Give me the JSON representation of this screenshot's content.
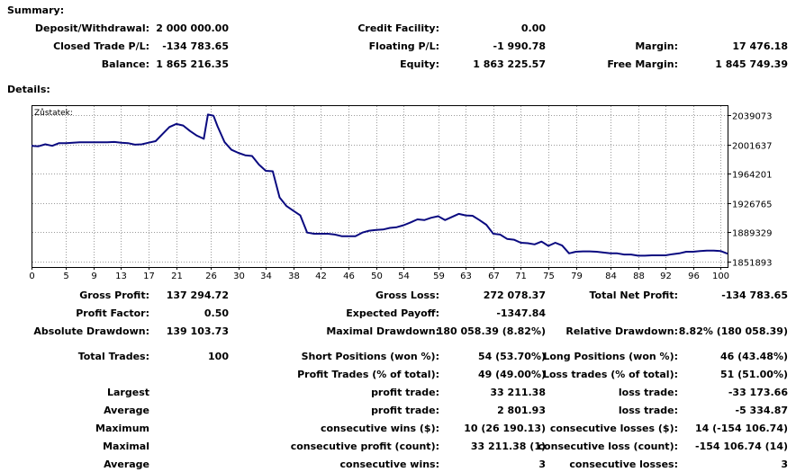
{
  "summary": {
    "heading": "Summary:",
    "deposit_label": "Deposit/Withdrawal:",
    "deposit_value": "2 000 000.00",
    "credit_label": "Credit Facility:",
    "credit_value": "0.00",
    "closed_pl_label": "Closed Trade P/L:",
    "closed_pl_value": "-134 783.65",
    "floating_pl_label": "Floating P/L:",
    "floating_pl_value": "-1 990.78",
    "margin_label": "Margin:",
    "margin_value": "17 476.18",
    "balance_label": "Balance:",
    "balance_value": "1 865 216.35",
    "equity_label": "Equity:",
    "equity_value": "1 863 225.57",
    "free_margin_label": "Free Margin:",
    "free_margin_value": "1 845 749.39"
  },
  "details": {
    "heading": "Details:"
  },
  "chart_data": {
    "type": "line",
    "title": "Zůstatek:",
    "xlabel": "",
    "ylabel": "",
    "x_ticks": [
      0,
      5,
      9,
      13,
      17,
      21,
      26,
      30,
      34,
      38,
      42,
      46,
      50,
      54,
      59,
      63,
      67,
      71,
      75,
      79,
      84,
      88,
      92,
      96,
      100
    ],
    "y_ticks": [
      1851893,
      1889329,
      1926765,
      1964201,
      2001637,
      2039073
    ],
    "xlim": [
      0,
      101
    ],
    "ylim": [
      1845000,
      2052000
    ],
    "grid": true,
    "series": [
      {
        "color": "#0a0a80",
        "x": [
          0,
          1,
          2,
          3,
          4,
          5,
          7,
          9,
          11,
          12,
          13,
          14,
          15,
          16,
          17,
          18,
          19,
          20,
          21,
          22,
          23,
          24,
          25,
          25.6,
          26.4,
          27,
          28,
          29,
          30,
          31,
          32,
          33,
          34,
          35,
          36,
          37,
          38,
          39,
          40,
          41,
          42,
          43,
          44,
          45,
          46,
          47,
          48,
          49,
          50,
          51,
          52,
          53,
          54,
          55,
          56,
          57,
          58,
          59,
          60,
          61,
          62,
          63,
          64,
          65,
          66,
          67,
          68,
          69,
          70,
          71,
          72,
          73,
          74,
          75,
          76,
          77,
          78,
          79,
          80,
          81,
          82,
          83,
          84,
          85,
          86,
          87,
          88,
          89,
          90,
          91,
          92,
          93,
          94,
          95,
          96,
          97,
          98,
          99,
          100,
          101
        ],
        "y": [
          2000000,
          1999500,
          2002000,
          2000000,
          2003500,
          2003500,
          2004500,
          2004500,
          2004500,
          2005000,
          2004000,
          2003500,
          2001500,
          2002000,
          2004000,
          2006000,
          2015000,
          2024000,
          2028000,
          2026000,
          2019000,
          2013000,
          2009000,
          2040000,
          2038500,
          2025000,
          2005000,
          1995000,
          1991000,
          1988000,
          1987000,
          1976000,
          1968000,
          1967500,
          1934000,
          1923000,
          1917000,
          1911000,
          1889000,
          1887500,
          1887500,
          1887500,
          1886500,
          1884500,
          1884500,
          1884500,
          1889000,
          1891500,
          1892500,
          1893000,
          1895000,
          1896000,
          1898500,
          1902000,
          1906000,
          1905000,
          1908000,
          1910000,
          1905000,
          1909000,
          1913000,
          1911000,
          1910500,
          1905000,
          1899000,
          1887500,
          1886500,
          1881000,
          1880000,
          1876000,
          1875500,
          1874000,
          1877500,
          1872000,
          1876000,
          1872500,
          1862500,
          1864500,
          1865000,
          1865000,
          1864500,
          1863500,
          1862500,
          1862500,
          1861000,
          1861000,
          1859500,
          1859500,
          1860000,
          1860000,
          1860000,
          1861500,
          1862500,
          1864500,
          1864500,
          1865500,
          1866000,
          1866000,
          1865500,
          1862000
        ]
      }
    ]
  },
  "stats": {
    "gross_profit_label": "Gross Profit:",
    "gross_profit_value": "137 294.72",
    "gross_loss_label": "Gross Loss:",
    "gross_loss_value": "272 078.37",
    "total_net_profit_label": "Total Net Profit:",
    "total_net_profit_value": "-134 783.65",
    "profit_factor_label": "Profit Factor:",
    "profit_factor_value": "0.50",
    "expected_payoff_label": "Expected Payoff:",
    "expected_payoff_value": "-1347.84",
    "absolute_drawdown_label": "Absolute Drawdown:",
    "absolute_drawdown_value": "139 103.73",
    "maximal_drawdown_label": "Maximal Drawdown:",
    "maximal_drawdown_value": "180 058.39 (8.82%)",
    "relative_drawdown_label": "Relative Drawdown:",
    "relative_drawdown_value": "8.82% (180 058.39)",
    "total_trades_label": "Total Trades:",
    "total_trades_value": "100",
    "short_positions_label": "Short Positions (won %):",
    "short_positions_value": "54 (53.70%)",
    "long_positions_label": "Long Positions (won %):",
    "long_positions_value": "46 (43.48%)",
    "profit_trades_label": "Profit Trades (% of total):",
    "profit_trades_value": "49 (49.00%)",
    "loss_trades_label": "Loss trades (% of total):",
    "loss_trades_value": "51 (51.00%)",
    "largest_label": "Largest",
    "largest_profit_label": "profit trade:",
    "largest_profit_value": "33 211.38",
    "largest_loss_label": "loss trade:",
    "largest_loss_value": "-33 173.66",
    "average_label": "Average",
    "average_profit_label": "profit trade:",
    "average_profit_value": "2 801.93",
    "average_loss_label": "loss trade:",
    "average_loss_value": "-5 334.87",
    "maximum_label": "Maximum",
    "max_consec_wins_label": "consecutive wins ($):",
    "max_consec_wins_value": "10 (26 190.13)",
    "max_consec_losses_label": "consecutive losses ($):",
    "max_consec_losses_value": "14 (-154 106.74)",
    "maximal_label": "Maximal",
    "maximal_consec_profit_label": "consecutive profit (count):",
    "maximal_consec_profit_value": "33 211.38 (1)",
    "maximal_consec_loss_label": "consecutive loss (count):",
    "maximal_consec_loss_value": "-154 106.74 (14)",
    "average2_label": "Average",
    "avg_consec_wins_label": "consecutive wins:",
    "avg_consec_wins_value": "3",
    "avg_consec_losses_label": "consecutive losses:",
    "avg_consec_losses_value": "3"
  }
}
